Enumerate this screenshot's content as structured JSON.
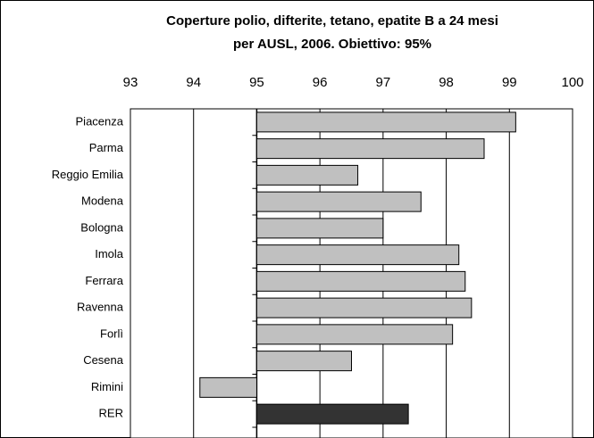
{
  "chart_data": {
    "type": "bar",
    "orientation": "horizontal",
    "title": [
      "Coperture polio, difterite, tetano, epatite B a 24 mesi",
      "per AUSL, 2006. Obiettivo: 95%"
    ],
    "categories": [
      "Piacenza",
      "Parma",
      "Reggio Emilia",
      "Modena",
      "Bologna",
      "Imola",
      "Ferrara",
      "Ravenna",
      "Forlì",
      "Cesena",
      "Rimini",
      "RER"
    ],
    "values": [
      99.1,
      98.6,
      96.6,
      97.6,
      97.0,
      98.2,
      98.3,
      98.4,
      98.1,
      96.5,
      94.1,
      97.4
    ],
    "colors": [
      "#c0c0c0",
      "#c0c0c0",
      "#c0c0c0",
      "#c0c0c0",
      "#c0c0c0",
      "#c0c0c0",
      "#c0c0c0",
      "#c0c0c0",
      "#c0c0c0",
      "#c0c0c0",
      "#c0c0c0",
      "#333333"
    ],
    "bar_base": 95,
    "xlim": [
      93,
      100
    ],
    "xticks": [
      93,
      94,
      95,
      96,
      97,
      98,
      99,
      100
    ],
    "grid": true
  }
}
